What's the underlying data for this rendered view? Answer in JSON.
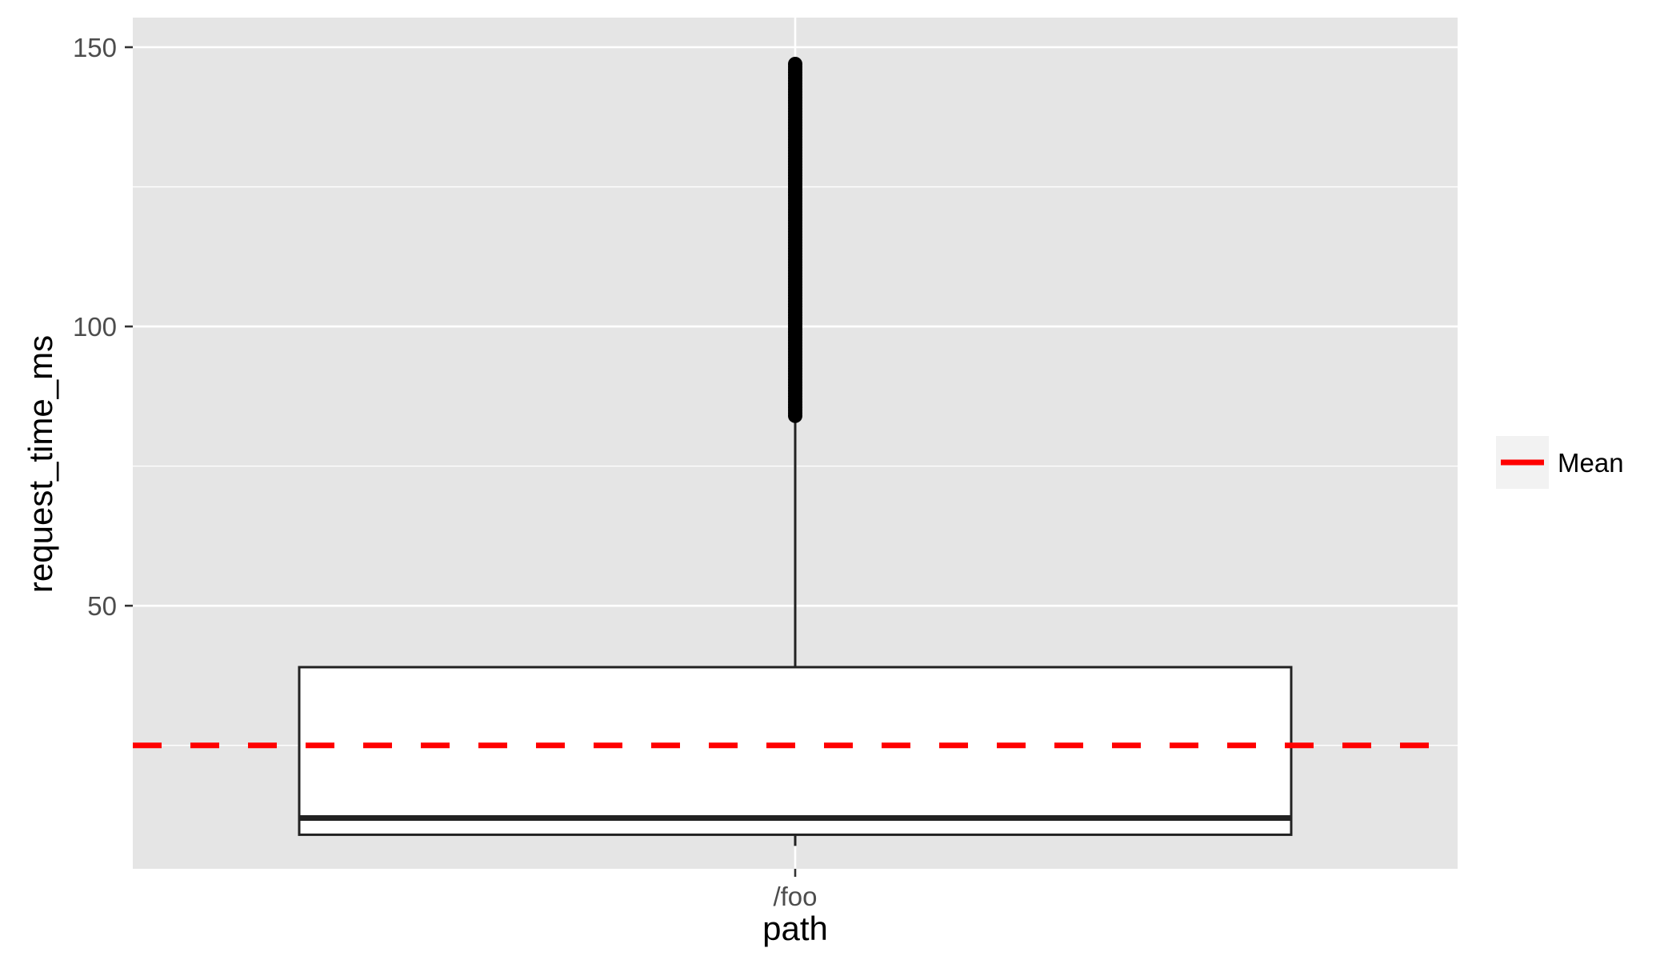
{
  "chart_data": {
    "type": "box",
    "xlabel": "path",
    "ylabel": "request_time_ms",
    "categories": [
      "/foo"
    ],
    "ylim": [
      0,
      155
    ],
    "yticks": [
      50,
      100,
      150
    ],
    "grid": true,
    "legend": {
      "position": "right",
      "entries": [
        {
          "label": "Mean",
          "style": "line",
          "color": "#ff0000"
        }
      ]
    },
    "boxes": [
      {
        "category": "/foo",
        "q1": 9,
        "median": 12,
        "q3": 39,
        "whisker_low": 7,
        "whisker_high": 84,
        "outliers_range": [
          84,
          147
        ]
      }
    ],
    "mean": 25,
    "colors": {
      "panel": "#e5e5e5",
      "grid": "#ffffff",
      "box_fill": "#ffffff",
      "box_stroke": "#222222",
      "mean_line": "#ff0000",
      "text": "#4d4d4d",
      "title_text": "#000000"
    }
  }
}
